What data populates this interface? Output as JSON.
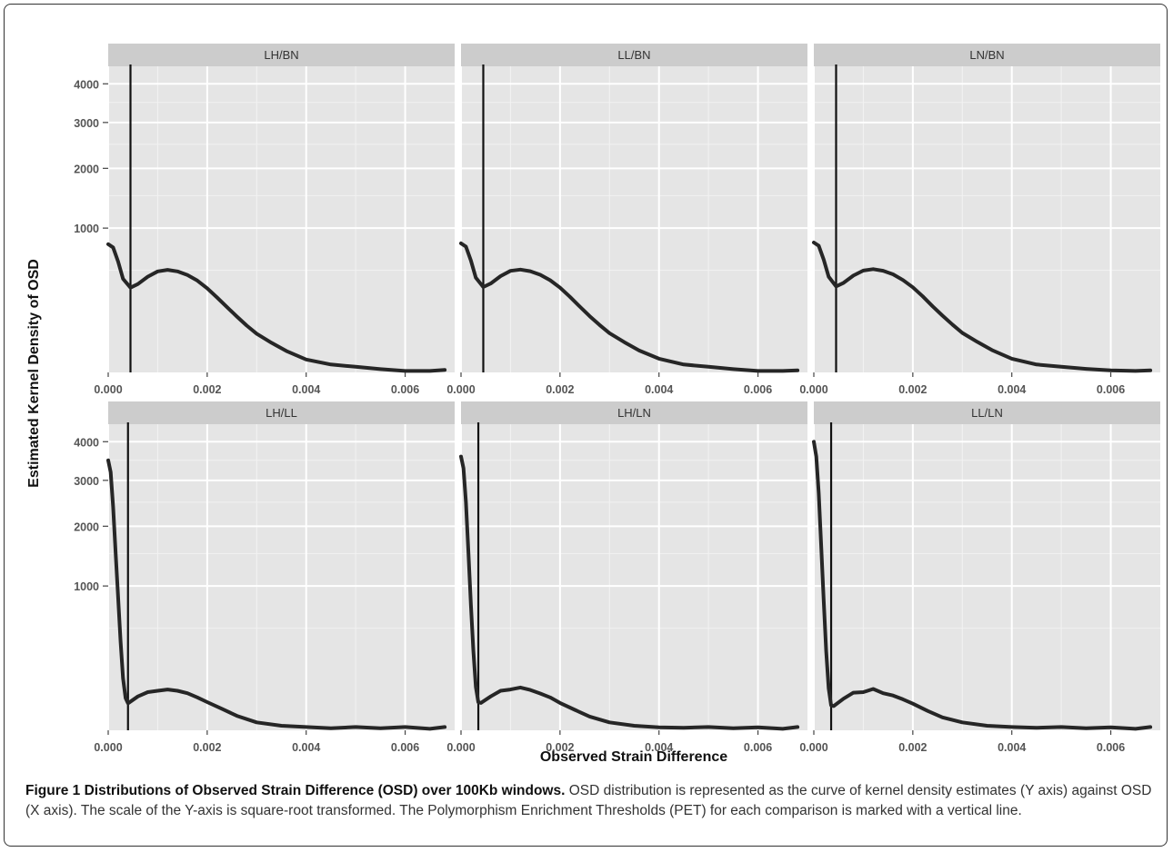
{
  "chart_data": {
    "type": "line",
    "xlabel": "Observed Strain Difference",
    "ylabel": "Estimated Kernel Density of OSD",
    "y_scale": "sqrt",
    "ylim": [
      0,
      4500
    ],
    "xlim": [
      0,
      0.007
    ],
    "x_ticks": [
      "0.000",
      "0.002",
      "0.004",
      "0.006"
    ],
    "y_ticks": [
      1000,
      2000,
      3000,
      4000
    ],
    "grid": true,
    "facets": [
      {
        "name": "LH/BN",
        "threshold": 0.00045,
        "x": [
          0,
          0.0001,
          0.0002,
          0.0003,
          0.00045,
          0.0006,
          0.0008,
          0.001,
          0.0012,
          0.0014,
          0.0016,
          0.0018,
          0.002,
          0.0022,
          0.0024,
          0.0026,
          0.0028,
          0.003,
          0.0033,
          0.0036,
          0.004,
          0.0045,
          0.005,
          0.0055,
          0.006,
          0.0065,
          0.0068
        ],
        "y": [
          790,
          750,
          590,
          420,
          345,
          375,
          440,
          490,
          505,
          490,
          455,
          405,
          340,
          270,
          205,
          150,
          105,
          72,
          42,
          22,
          8,
          3,
          1.5,
          0.5,
          0.1,
          0.1,
          0.3
        ]
      },
      {
        "name": "LL/BN",
        "threshold": 0.00045,
        "x": [
          0,
          0.0001,
          0.0002,
          0.0003,
          0.00045,
          0.0006,
          0.0008,
          0.001,
          0.0012,
          0.0014,
          0.0016,
          0.0018,
          0.002,
          0.0022,
          0.0024,
          0.0026,
          0.0028,
          0.003,
          0.0033,
          0.0036,
          0.004,
          0.0045,
          0.005,
          0.0055,
          0.006,
          0.0065,
          0.0068
        ],
        "y": [
          800,
          760,
          600,
          430,
          350,
          380,
          445,
          495,
          508,
          492,
          458,
          408,
          345,
          275,
          208,
          152,
          108,
          74,
          44,
          23,
          9,
          3,
          1.5,
          0.5,
          0.1,
          0.1,
          0.2
        ]
      },
      {
        "name": "LN/BN",
        "threshold": 0.00045,
        "x": [
          0,
          0.0001,
          0.0002,
          0.0003,
          0.00045,
          0.0006,
          0.0008,
          0.001,
          0.0012,
          0.0014,
          0.0016,
          0.0018,
          0.002,
          0.0022,
          0.0024,
          0.0026,
          0.0028,
          0.003,
          0.0033,
          0.0036,
          0.004,
          0.0045,
          0.005,
          0.0055,
          0.006,
          0.0065,
          0.0068
        ],
        "y": [
          810,
          770,
          610,
          440,
          355,
          385,
          450,
          498,
          512,
          496,
          462,
          410,
          348,
          278,
          210,
          155,
          110,
          75,
          45,
          24,
          9,
          3,
          1.5,
          0.6,
          0.2,
          0.1,
          0.2
        ]
      },
      {
        "name": "LH/LL",
        "threshold": 0.0004,
        "x": [
          0,
          5e-05,
          0.0001,
          0.00015,
          0.0002,
          0.00025,
          0.0003,
          0.00035,
          0.0004,
          0.0006,
          0.0008,
          0.001,
          0.0012,
          0.0014,
          0.0016,
          0.0018,
          0.002,
          0.0023,
          0.0026,
          0.003,
          0.0035,
          0.004,
          0.0045,
          0.005,
          0.0055,
          0.006,
          0.0065,
          0.0068
        ],
        "y": [
          3500,
          3200,
          2400,
          1500,
          850,
          380,
          130,
          50,
          35,
          55,
          70,
          75,
          80,
          75,
          66,
          52,
          38,
          22,
          10,
          3,
          1,
          0.5,
          0.2,
          0.5,
          0.2,
          0.5,
          0.1,
          0.5
        ]
      },
      {
        "name": "LH/LN",
        "threshold": 0.00035,
        "x": [
          0,
          5e-05,
          0.0001,
          0.00015,
          0.0002,
          0.00025,
          0.0003,
          0.00035,
          0.0004,
          0.0006,
          0.0008,
          0.001,
          0.0012,
          0.0014,
          0.0016,
          0.0018,
          0.002,
          0.0023,
          0.0026,
          0.003,
          0.0035,
          0.004,
          0.0045,
          0.005,
          0.0055,
          0.006,
          0.0065,
          0.0068
        ],
        "y": [
          3600,
          3300,
          2500,
          1500,
          750,
          300,
          90,
          38,
          36,
          55,
          75,
          80,
          88,
          78,
          65,
          52,
          36,
          20,
          9,
          3,
          1,
          0.4,
          0.3,
          0.5,
          0.2,
          0.4,
          0.1,
          0.5
        ]
      },
      {
        "name": "LL/LN",
        "threshold": 0.00035,
        "x": [
          0,
          5e-05,
          0.0001,
          0.00015,
          0.0002,
          0.00025,
          0.0003,
          0.00035,
          0.0004,
          0.0006,
          0.0008,
          0.001,
          0.0012,
          0.0014,
          0.0016,
          0.0018,
          0.002,
          0.0023,
          0.0026,
          0.003,
          0.0035,
          0.004,
          0.0045,
          0.005,
          0.0055,
          0.006,
          0.0065,
          0.0068
        ],
        "y": [
          4000,
          3600,
          2700,
          1600,
          800,
          300,
          85,
          30,
          28,
          48,
          68,
          70,
          82,
          66,
          58,
          46,
          34,
          18,
          8,
          3,
          1,
          0.5,
          0.3,
          0.5,
          0.2,
          0.4,
          0.1,
          0.5
        ]
      }
    ]
  },
  "caption": {
    "title": "Figure 1 Distributions of Observed Strain Difference (OSD) over 100Kb windows.",
    "text": "OSD distribution is represented as the curve of kernel density estimates (Y axis) against OSD (X axis). The scale of the Y-axis is square-root transformed. The Polymorphism Enrichment Thresholds (PET) for each comparison is marked with a vertical line."
  },
  "colors": {
    "panel_bg": "#e5e5e5",
    "strip_bg": "#cccccc",
    "grid_major": "#ffffff",
    "grid_minor": "#f2f2f2",
    "curve": "#262626",
    "threshold_line": "#111111"
  }
}
